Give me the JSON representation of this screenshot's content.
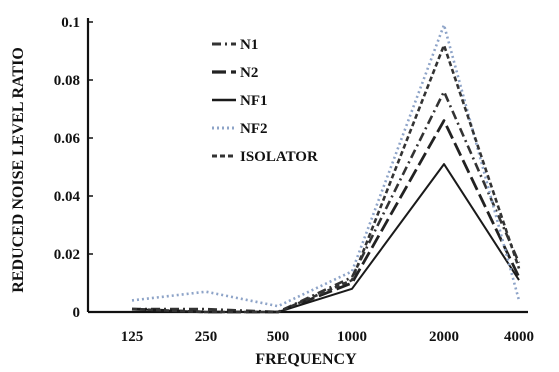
{
  "chart_data": {
    "type": "line",
    "title": "",
    "xlabel": "FREQUENCY",
    "ylabel": "REDUCED NOISE LEVEL RATIO",
    "categories": [
      "125",
      "250",
      "500",
      "1000",
      "2000",
      "4000"
    ],
    "yticks": [
      "0",
      "0.02",
      "0.04",
      "0.06",
      "0.08",
      "0.1"
    ],
    "ylim": [
      0,
      0.1
    ],
    "grid": false,
    "legend_position": "top-left",
    "series": [
      {
        "name": "N1",
        "color": "#333333",
        "style": "dash-dot",
        "values": [
          0.001,
          0.001,
          0.0,
          0.012,
          0.076,
          0.017
        ]
      },
      {
        "name": "N2",
        "color": "#222222",
        "style": "long-dash",
        "values": [
          0.001,
          0.0,
          0.0,
          0.01,
          0.066,
          0.012
        ]
      },
      {
        "name": "NF1",
        "color": "#1a1a1a",
        "style": "solid",
        "values": [
          0.001,
          0.0,
          0.0,
          0.008,
          0.051,
          0.011
        ]
      },
      {
        "name": "NF2",
        "color": "#8ea4c8",
        "style": "dotted",
        "values": [
          0.004,
          0.007,
          0.002,
          0.014,
          0.099,
          0.004
        ]
      },
      {
        "name": "ISOLATOR",
        "color": "#333333",
        "style": "short-dash",
        "values": [
          0.001,
          0.0,
          0.0,
          0.011,
          0.092,
          0.015
        ]
      }
    ]
  }
}
